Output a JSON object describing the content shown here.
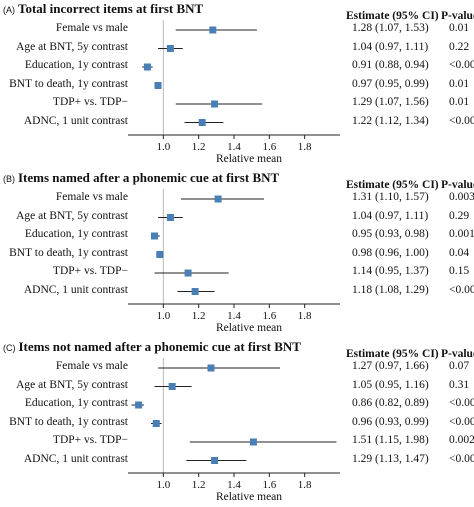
{
  "header": {
    "estimate_label": "Estimate (95% CI)",
    "p_label": "P-value"
  },
  "chart_data": [
    {
      "type": "forest",
      "panel_tag": "(A)",
      "title": "Total incorrect items at first BNT",
      "xlabel": "Relative mean",
      "xlim": [
        0.8,
        2.0
      ],
      "xticks": [
        "1.0",
        "1.2",
        "1.4",
        "1.6",
        "1.8"
      ],
      "reference_line": 1.0,
      "rows": [
        {
          "label": "Female vs male",
          "estimate": 1.28,
          "lower": 1.07,
          "upper": 1.53,
          "estimate_text": "1.28 (1.07, 1.53)",
          "p": "0.01"
        },
        {
          "label": "Age at BNT, 5y contrast",
          "estimate": 1.04,
          "lower": 0.97,
          "upper": 1.11,
          "estimate_text": "1.04 (0.97, 1.11)",
          "p": "0.22"
        },
        {
          "label": "Education, 1y contrast",
          "estimate": 0.91,
          "lower": 0.88,
          "upper": 0.94,
          "estimate_text": "0.91 (0.88, 0.94)",
          "p": "<0.001"
        },
        {
          "label": "BNT to death, 1y contrast",
          "estimate": 0.97,
          "lower": 0.95,
          "upper": 0.99,
          "estimate_text": "0.97 (0.95, 0.99)",
          "p": "0.01"
        },
        {
          "label": "TDP+ vs. TDP−",
          "estimate": 1.29,
          "lower": 1.07,
          "upper": 1.56,
          "estimate_text": "1.29 (1.07, 1.56)",
          "p": "0.01"
        },
        {
          "label": "ADNC, 1 unit contrast",
          "estimate": 1.22,
          "lower": 1.12,
          "upper": 1.34,
          "estimate_text": "1.22 (1.12, 1.34)",
          "p": "<0.001"
        }
      ]
    },
    {
      "type": "forest",
      "panel_tag": "(B)",
      "title": "Items named after a phonemic cue at first BNT",
      "xlabel": "Relative mean",
      "xlim": [
        0.8,
        2.0
      ],
      "xticks": [
        "1.0",
        "1.2",
        "1.4",
        "1.6",
        "1.8"
      ],
      "reference_line": 1.0,
      "rows": [
        {
          "label": "Female vs male",
          "estimate": 1.31,
          "lower": 1.1,
          "upper": 1.57,
          "estimate_text": "1.31 (1.10, 1.57)",
          "p": "0.003"
        },
        {
          "label": "Age at BNT, 5y contrast",
          "estimate": 1.04,
          "lower": 0.97,
          "upper": 1.11,
          "estimate_text": "1.04 (0.97, 1.11)",
          "p": "0.29"
        },
        {
          "label": "Education, 1y contrast",
          "estimate": 0.95,
          "lower": 0.93,
          "upper": 0.98,
          "estimate_text": "0.95 (0.93, 0.98)",
          "p": "0.001"
        },
        {
          "label": "BNT to death, 1y contrast",
          "estimate": 0.98,
          "lower": 0.96,
          "upper": 1.0,
          "estimate_text": "0.98 (0.96, 1.00)",
          "p": "0.04"
        },
        {
          "label": "TDP+ vs. TDP−",
          "estimate": 1.14,
          "lower": 0.95,
          "upper": 1.37,
          "estimate_text": "1.14 (0.95, 1.37)",
          "p": "0.15"
        },
        {
          "label": "ADNC, 1 unit contrast",
          "estimate": 1.18,
          "lower": 1.08,
          "upper": 1.29,
          "estimate_text": "1.18 (1.08, 1.29)",
          "p": "<0.001"
        }
      ]
    },
    {
      "type": "forest",
      "panel_tag": "(C)",
      "title": "Items not named after a phonemic cue at first BNT",
      "xlabel": "Relative mean",
      "xlim": [
        0.8,
        2.0
      ],
      "xticks": [
        "1.0",
        "1.2",
        "1.4",
        "1.6",
        "1.8"
      ],
      "reference_line": 1.0,
      "rows": [
        {
          "label": "Female vs male",
          "estimate": 1.27,
          "lower": 0.97,
          "upper": 1.66,
          "estimate_text": "1.27 (0.97, 1.66)",
          "p": "0.07"
        },
        {
          "label": "Age at BNT, 5y contrast",
          "estimate": 1.05,
          "lower": 0.95,
          "upper": 1.16,
          "estimate_text": "1.05 (0.95, 1.16)",
          "p": "0.31"
        },
        {
          "label": "Education, 1y contrast",
          "estimate": 0.86,
          "lower": 0.82,
          "upper": 0.89,
          "estimate_text": "0.86 (0.82, 0.89)",
          "p": "<0.001"
        },
        {
          "label": "BNT to death, 1y contrast",
          "estimate": 0.96,
          "lower": 0.93,
          "upper": 0.99,
          "estimate_text": "0.96 (0.93, 0.99)",
          "p": "<0.001"
        },
        {
          "label": "TDP+ vs. TDP−",
          "estimate": 1.51,
          "lower": 1.15,
          "upper": 1.98,
          "estimate_text": "1.51 (1.15, 1.98)",
          "p": "0.002"
        },
        {
          "label": "ADNC, 1 unit contrast",
          "estimate": 1.29,
          "lower": 1.13,
          "upper": 1.47,
          "estimate_text": "1.29 (1.13, 1.47)",
          "p": "<0.001"
        }
      ]
    }
  ],
  "colors": {
    "marker": "#4a7fb5",
    "ci_line": "#222222",
    "reference_line": "#b8b8b8",
    "axis": "#222222"
  }
}
